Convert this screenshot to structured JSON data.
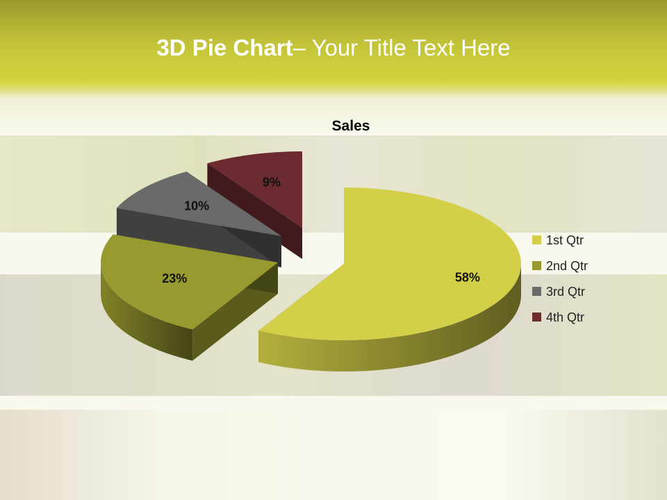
{
  "slide": {
    "title_bold": "3D Pie Chart",
    "title_rest": "– Your Title Text Here"
  },
  "chart_data": {
    "type": "pie",
    "style": "3d-exploded",
    "title": "Sales",
    "categories": [
      "1st Qtr",
      "2nd Qtr",
      "3rd Qtr",
      "4th Qtr"
    ],
    "values": [
      58,
      23,
      10,
      9
    ],
    "labels": [
      "58%",
      "23%",
      "10%",
      "9%"
    ],
    "colors": [
      "#d3cf48",
      "#98992e",
      "#6a6a6a",
      "#6b2b30"
    ],
    "legend_position": "right"
  }
}
